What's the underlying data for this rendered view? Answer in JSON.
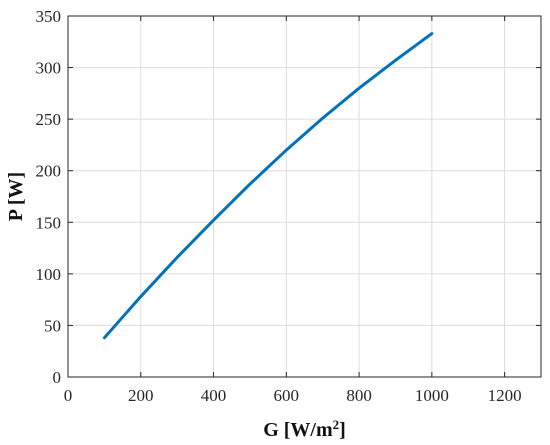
{
  "chart_data": {
    "type": "line",
    "xlabel_main": "G [W/m",
    "xlabel_sup": "2",
    "xlabel_end": "]",
    "ylabel": "P [W]",
    "xlim": [
      0,
      1300
    ],
    "ylim": [
      0,
      350
    ],
    "xticks": [
      0,
      200,
      400,
      600,
      800,
      1000,
      1200
    ],
    "yticks": [
      0,
      50,
      100,
      150,
      200,
      250,
      300,
      350
    ],
    "grid": true,
    "series": [
      {
        "color": "#0072bd",
        "x": [
          100,
          200,
          300,
          400,
          500,
          600,
          700,
          800,
          900,
          1000
        ],
        "y": [
          38,
          78,
          116,
          152,
          187,
          220,
          251,
          280,
          307,
          333
        ]
      }
    ]
  }
}
